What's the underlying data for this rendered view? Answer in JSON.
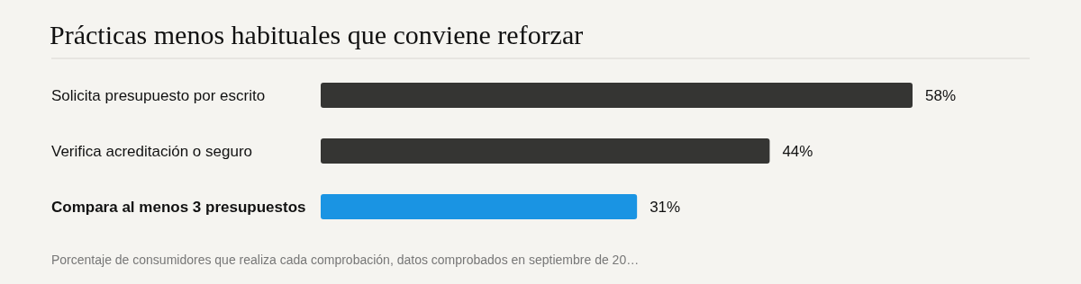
{
  "chart_data": {
    "type": "bar",
    "orientation": "horizontal",
    "title": "Prácticas menos habituales que conviene reforzar",
    "categories": [
      "Solicita presupuesto por escrito",
      "Verifica acreditación o seguro",
      "Compara al menos 3 presupuestos"
    ],
    "values": [
      58,
      44,
      31
    ],
    "colors": [
      "#353533",
      "#353533",
      "#1a94e3"
    ],
    "value_labels": [
      "58%",
      "44%",
      "31%"
    ],
    "annotations": [
      "Porcentaje de consumidores que realiza cada comprobación, datos comprobados en septiembre de 20…"
    ],
    "tick_labels": "y"
  }
}
